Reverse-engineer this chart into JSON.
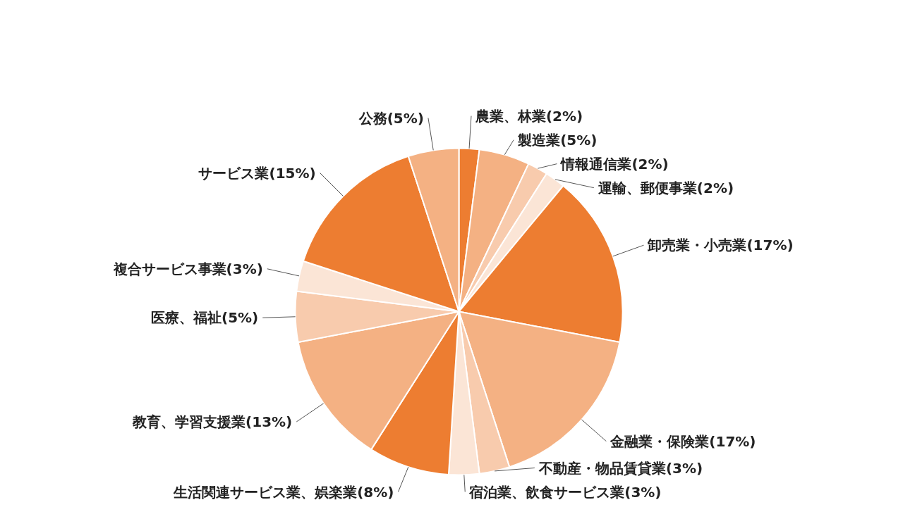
{
  "chart_data": {
    "type": "pie",
    "categories": [
      "農業、林業(2%)",
      "製造業(5%)",
      "情報通信業(2%)",
      "運輸、郵便事業(2%)",
      "卸売業・小売業(17%)",
      "金融業・保険業(17%)",
      "不動産・物品賃貸業(3%)",
      "宿泊業、飲食サービス業(3%)",
      "生活関連サービス業、娯楽業(8%)",
      "教育、学習支援業(13%)",
      "医療、福祉(5%)",
      "複合サービス事業(3%)",
      "サービス業(15%)",
      "公務(5%)"
    ],
    "values": [
      2,
      5,
      2,
      2,
      17,
      17,
      3,
      3,
      8,
      13,
      5,
      3,
      15,
      5
    ],
    "colors": [
      "#ed7d31",
      "#f4b183",
      "#f8cbad",
      "#fbe5d6",
      "#ed7d31",
      "#f4b183",
      "#f8cbad",
      "#fbe5d6",
      "#ed7d31",
      "#f4b183",
      "#f8cbad",
      "#fbe5d6",
      "#ed7d31",
      "#f4b183"
    ]
  }
}
